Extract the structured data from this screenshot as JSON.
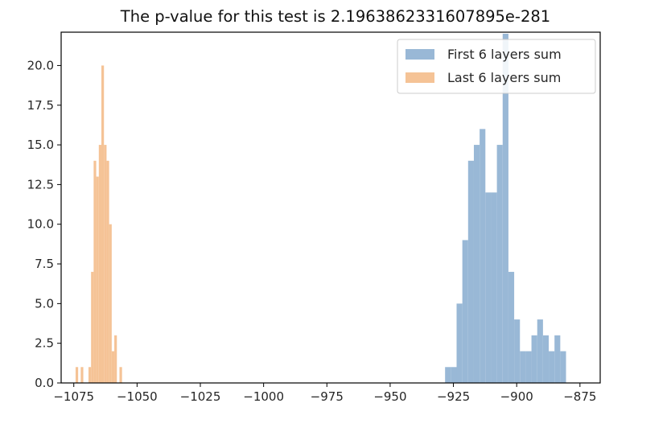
{
  "chart_data": {
    "type": "histogram",
    "title": "The p-value for this test is 2.1963862331607895e-281",
    "xlabel": "",
    "ylabel": "",
    "xlim": [
      -1080,
      -867
    ],
    "ylim": [
      0,
      22.1
    ],
    "x_ticks": [
      -1075,
      -1050,
      -1025,
      -1000,
      -975,
      -950,
      -925,
      -900,
      -875
    ],
    "x_tick_labels": [
      "−1075",
      "−1050",
      "−1025",
      "−1000",
      "−975",
      "−950",
      "−925",
      "−900",
      "−875"
    ],
    "y_ticks": [
      0,
      2.5,
      5,
      7.5,
      10,
      12.5,
      15,
      17.5,
      20
    ],
    "y_tick_labels": [
      "0.0",
      "2.5",
      "5.0",
      "7.5",
      "10.0",
      "12.5",
      "15.0",
      "17.5",
      "20.0"
    ],
    "grid": false,
    "legend_position": "top-right",
    "series": [
      {
        "name": "First 6 layers sum",
        "color": "#99b8d6",
        "bin_start": -928.3,
        "bin_width": 2.276,
        "values": [
          1,
          1,
          5,
          9,
          14,
          15,
          16,
          12,
          12,
          15,
          22,
          7,
          4,
          2,
          2,
          3,
          4,
          3,
          2,
          3,
          2
        ]
      },
      {
        "name": "Last 6 layers sum",
        "color": "#f5c396",
        "bin_start": -1074.3,
        "bin_width": 1.02,
        "values": [
          1,
          0,
          1,
          0,
          0,
          1,
          7,
          14,
          13,
          15,
          20,
          15,
          14,
          10,
          2,
          3,
          0,
          1
        ]
      }
    ]
  }
}
